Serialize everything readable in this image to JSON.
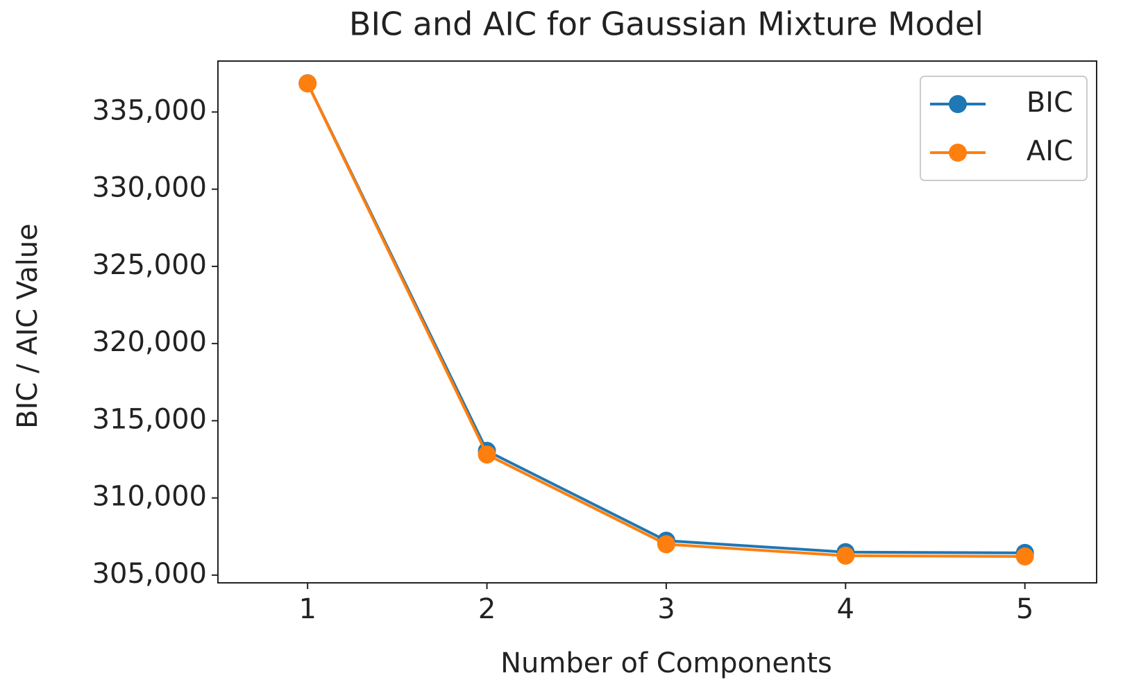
{
  "chart_data": {
    "type": "line",
    "title": "BIC and AIC for Gaussian Mixture Model",
    "x_label": "Number of Components",
    "y_label": "BIC / AIC Value",
    "x": [
      1,
      2,
      3,
      4,
      5
    ],
    "series": [
      {
        "name": "BIC",
        "color": "#1f77b4",
        "values": [
          336860,
          313050,
          307230,
          306490,
          306440
        ]
      },
      {
        "name": "AIC",
        "color": "#ff7f0e",
        "values": [
          336850,
          312810,
          307000,
          306260,
          306210
        ]
      }
    ],
    "xlim": [
      0.5,
      5.4
    ],
    "ylim": [
      304500,
      338300
    ],
    "xticks": [
      1,
      2,
      3,
      4,
      5
    ],
    "yticks": [
      {
        "value": 305000,
        "label": "305,000"
      },
      {
        "value": 310000,
        "label": "310,000"
      },
      {
        "value": 315000,
        "label": "315,000"
      },
      {
        "value": 320000,
        "label": "320,000"
      },
      {
        "value": 325000,
        "label": "325,000"
      },
      {
        "value": 330000,
        "label": "330,000"
      },
      {
        "value": 335000,
        "label": "335,000"
      }
    ],
    "legend": "upper right",
    "grid": false
  }
}
